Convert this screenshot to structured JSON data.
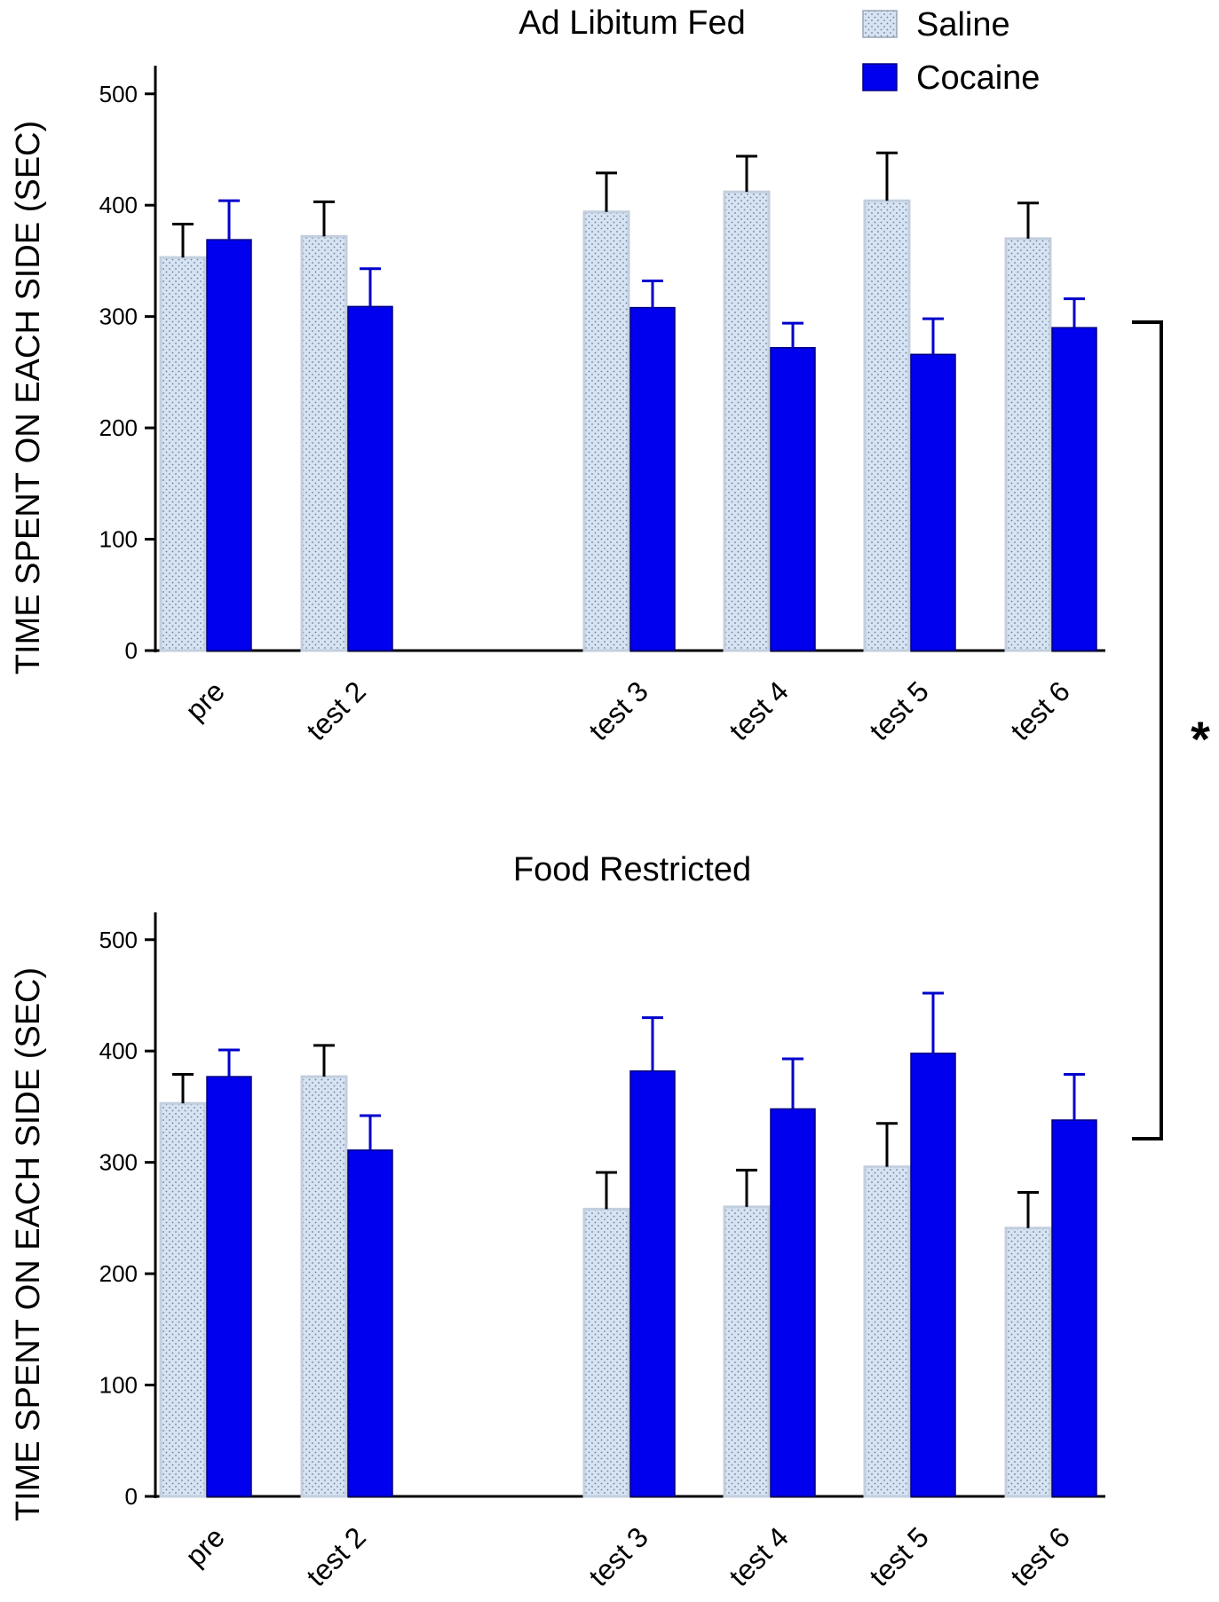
{
  "colors": {
    "saline_fill": "#d6e3f3",
    "saline_dot": "#6f7f96",
    "saline_stroke": "#c3cfde",
    "cocaine_fill": "#0000ee",
    "cocaine_stroke": "#000080",
    "axis": "#000000",
    "cocaine_error": "#0000cc"
  },
  "legend": {
    "saline": "Saline",
    "cocaine": "Cocaine"
  },
  "significance": "*",
  "chart_data": [
    {
      "type": "bar",
      "title": "Ad Libitum Fed",
      "ylabel": "TIME SPENT  ON EACH SIDE (SEC)",
      "xlabel": "",
      "ylim": [
        0,
        520
      ],
      "yticks": [
        "0",
        "100",
        "200",
        "300",
        "400",
        "500"
      ],
      "categories": [
        "pre",
        "test 2",
        "test 3",
        "test 4",
        "test 5",
        "test 6"
      ],
      "series": [
        {
          "name": "Saline",
          "values": [
            353,
            372,
            394,
            412,
            404,
            370
          ],
          "errors": [
            30,
            31,
            35,
            32,
            43,
            32
          ]
        },
        {
          "name": "Cocaine",
          "values": [
            369,
            309,
            308,
            272,
            266,
            290
          ],
          "errors": [
            35,
            34,
            24,
            22,
            32,
            26
          ]
        }
      ]
    },
    {
      "type": "bar",
      "title": "Food Restricted",
      "ylabel": "TIME SPENT  ON EACH SIDE (SEC)",
      "xlabel": "",
      "ylim": [
        0,
        520
      ],
      "yticks": [
        "0",
        "100",
        "200",
        "300",
        "400",
        "500"
      ],
      "categories": [
        "pre",
        "test 2",
        "test 3",
        "test 4",
        "test 5",
        "test 6"
      ],
      "series": [
        {
          "name": "Saline",
          "values": [
            353,
            377,
            258,
            260,
            296,
            241
          ],
          "errors": [
            26,
            28,
            33,
            33,
            39,
            32
          ]
        },
        {
          "name": "Cocaine",
          "values": [
            377,
            311,
            382,
            348,
            398,
            338
          ],
          "errors": [
            24,
            31,
            48,
            45,
            54,
            41
          ]
        }
      ]
    }
  ]
}
